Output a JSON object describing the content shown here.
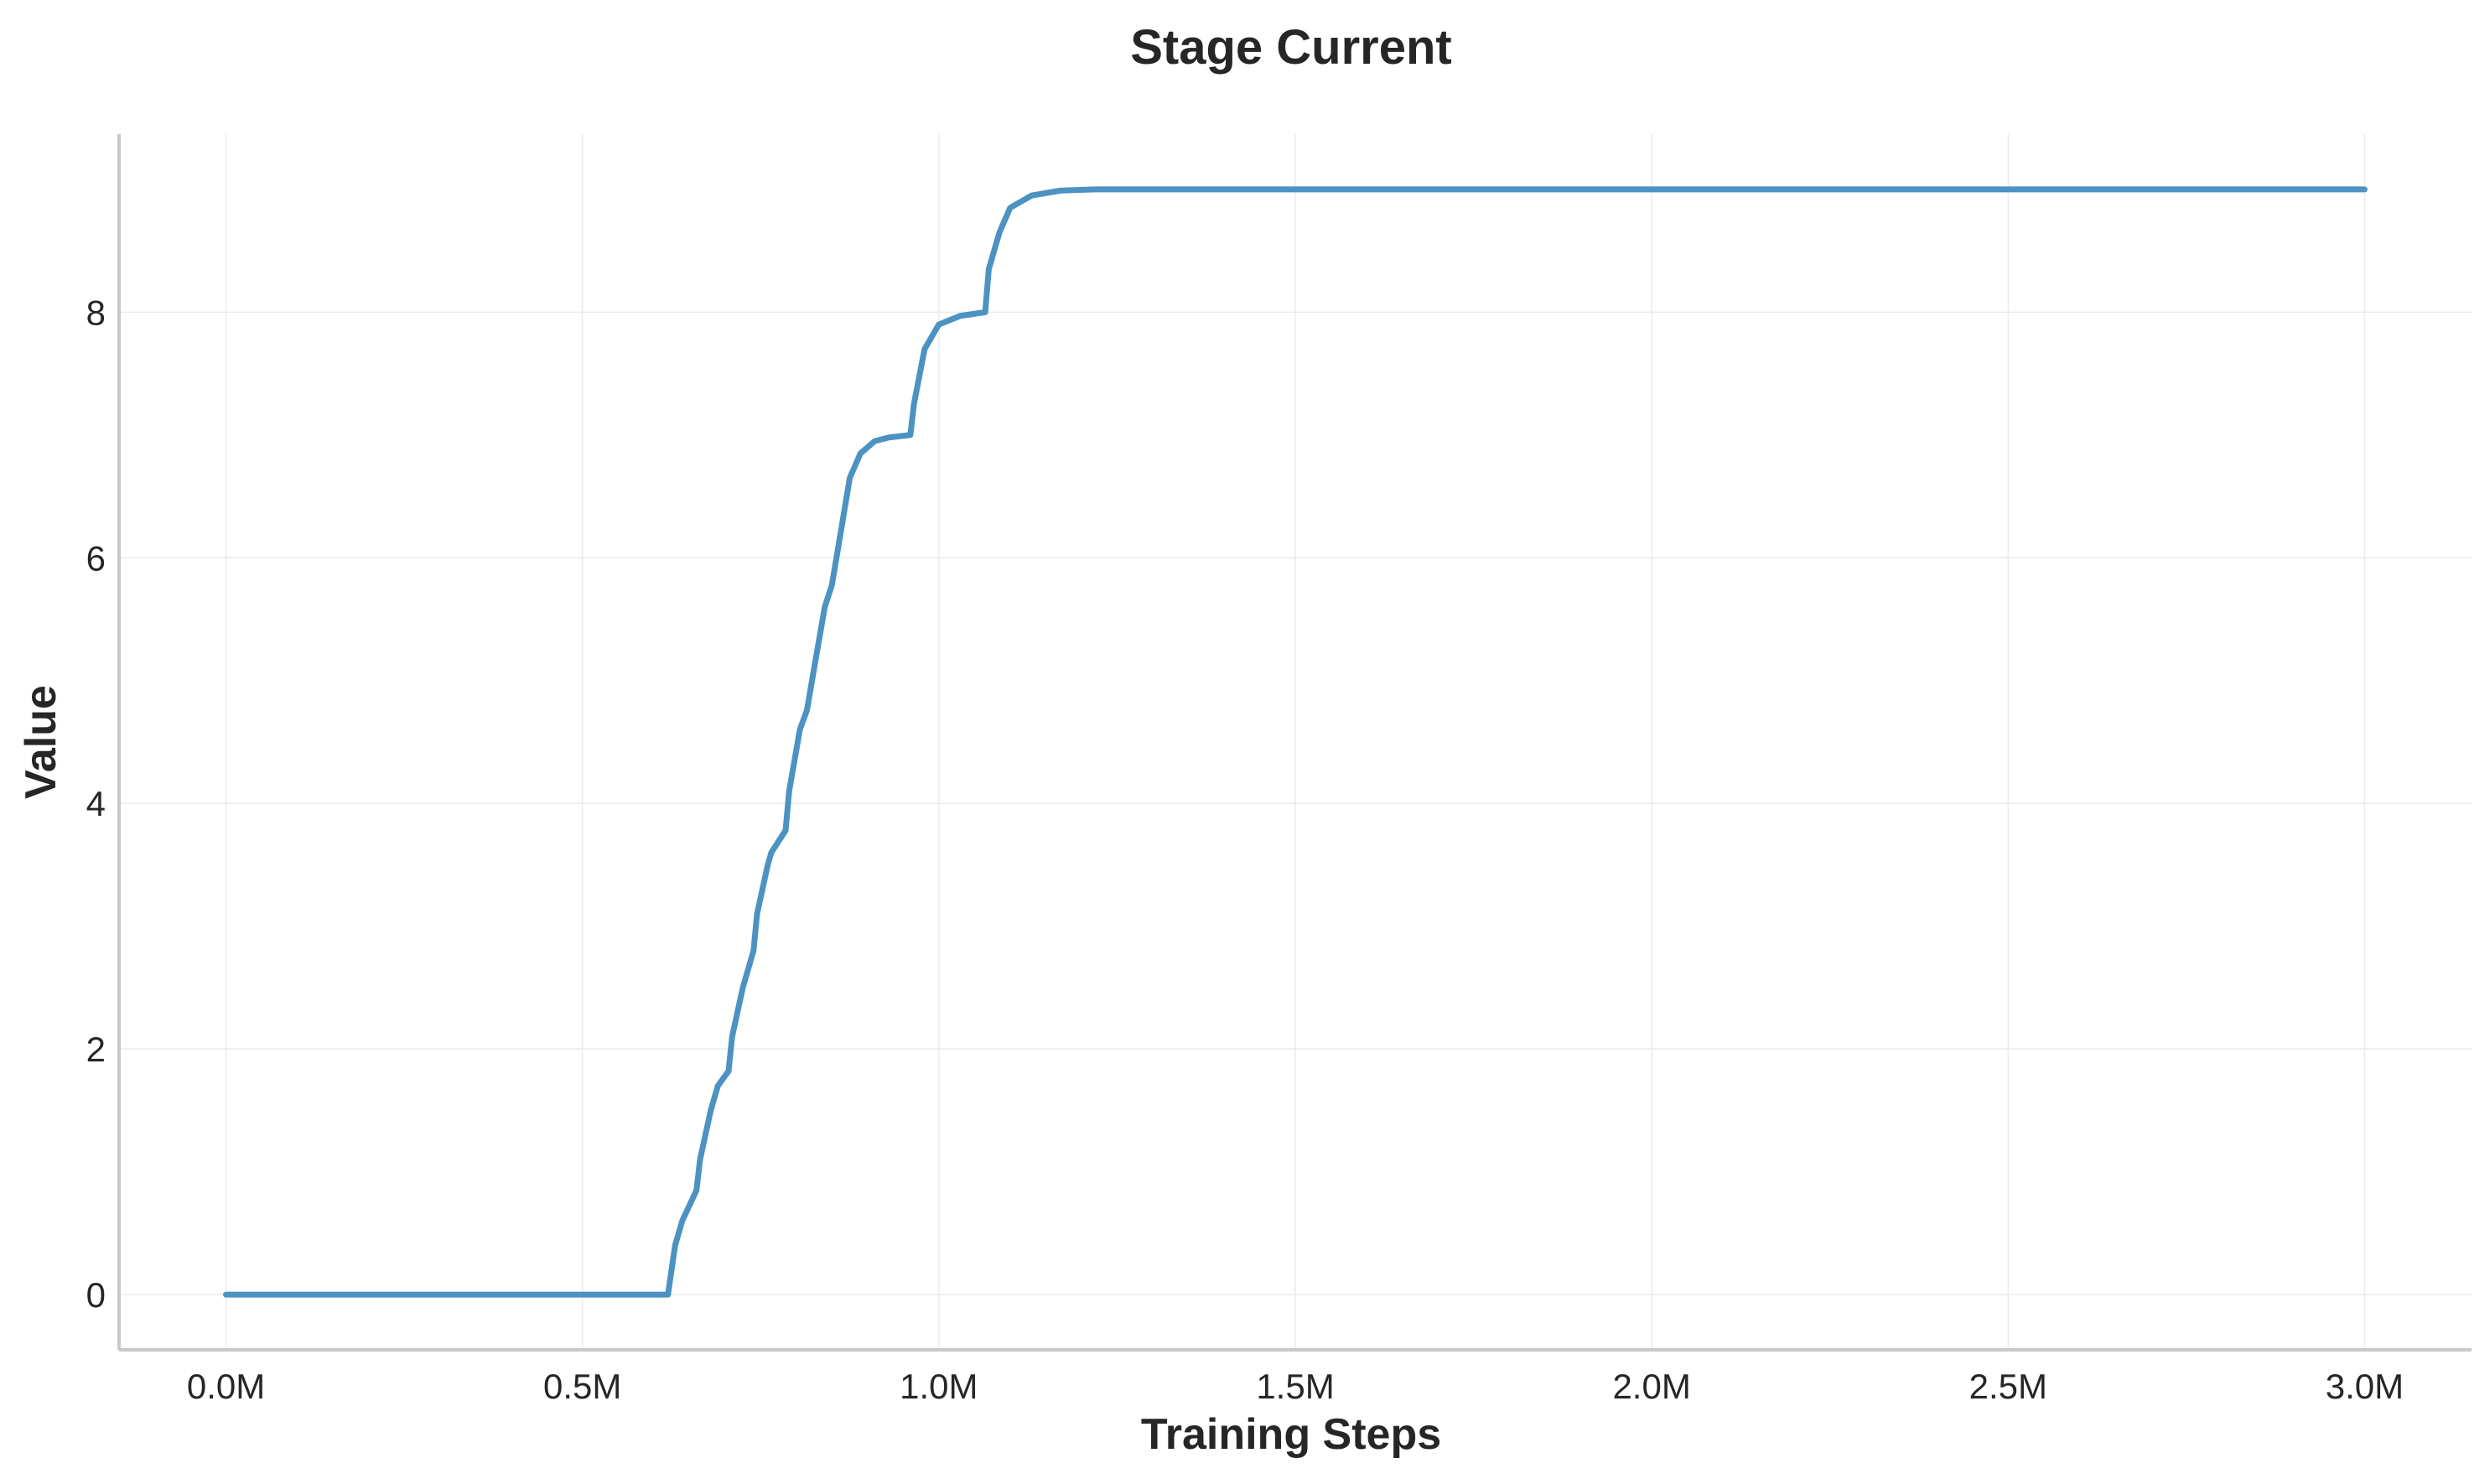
{
  "chart_data": {
    "type": "line",
    "title": "Stage Current",
    "xlabel": "Training Steps",
    "ylabel": "Value",
    "xlim": [
      -0.15,
      3.15
    ],
    "ylim": [
      -0.45,
      9.45
    ],
    "grid": true,
    "xticks": [
      {
        "value": 0.0,
        "label": "0.0M"
      },
      {
        "value": 0.5,
        "label": "0.5M"
      },
      {
        "value": 1.0,
        "label": "1.0M"
      },
      {
        "value": 1.5,
        "label": "1.5M"
      },
      {
        "value": 2.0,
        "label": "2.0M"
      },
      {
        "value": 2.5,
        "label": "2.5M"
      },
      {
        "value": 3.0,
        "label": "3.0M"
      }
    ],
    "yticks": [
      {
        "value": 0,
        "label": "0"
      },
      {
        "value": 2,
        "label": "2"
      },
      {
        "value": 4,
        "label": "4"
      },
      {
        "value": 6,
        "label": "6"
      },
      {
        "value": 8,
        "label": "8"
      }
    ],
    "series": [
      {
        "color": "#4c92c3",
        "x": [
          0.0,
          0.3,
          0.62,
          0.63,
          0.64,
          0.66,
          0.665,
          0.68,
          0.69,
          0.705,
          0.71,
          0.725,
          0.74,
          0.745,
          0.76,
          0.765,
          0.785,
          0.79,
          0.805,
          0.815,
          0.825,
          0.84,
          0.85,
          0.865,
          0.875,
          0.89,
          0.91,
          0.93,
          0.96,
          0.965,
          0.98,
          1.0,
          1.03,
          1.065,
          1.07,
          1.085,
          1.1,
          1.13,
          1.17,
          1.22,
          1.3,
          1.5,
          2.0,
          2.5,
          3.0
        ],
        "y": [
          0,
          0,
          0,
          0.4,
          0.6,
          0.85,
          1.1,
          1.5,
          1.7,
          1.82,
          2.1,
          2.5,
          2.8,
          3.1,
          3.5,
          3.6,
          3.78,
          4.1,
          4.6,
          4.76,
          5.1,
          5.6,
          5.78,
          6.3,
          6.65,
          6.85,
          6.95,
          6.98,
          7.0,
          7.25,
          7.7,
          7.9,
          7.97,
          8.0,
          8.35,
          8.65,
          8.85,
          8.95,
          8.99,
          9.0,
          9.0,
          9.0,
          9.0,
          9.0,
          9.0
        ]
      }
    ]
  }
}
